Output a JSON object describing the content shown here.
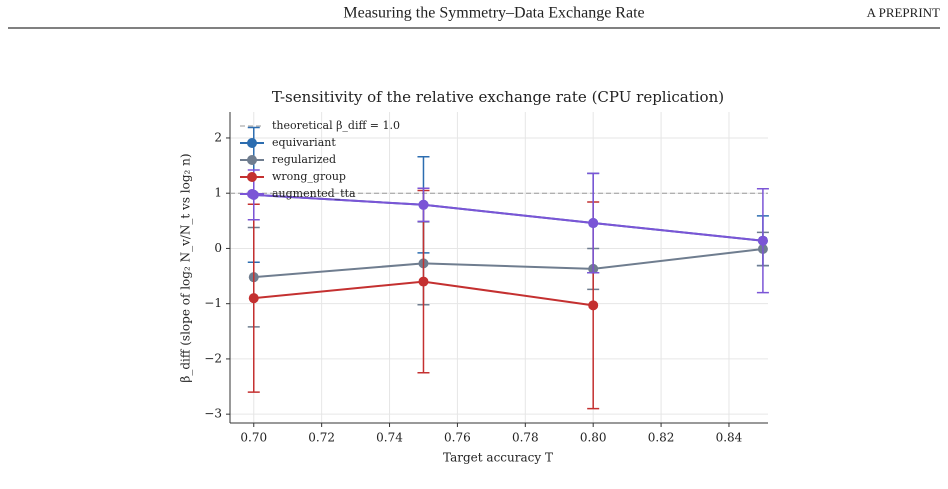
{
  "header": {
    "title": "Measuring the Symmetry–Data Exchange Rate",
    "tag": "A PREPRINT"
  },
  "chart_data": {
    "type": "line",
    "title": "T-sensitivity of the relative exchange rate (CPU replication)",
    "x_label": "Target accuracy T",
    "y_label": "β_diff (slope of log₂ N_v/N_t vs log₂ n)",
    "x": [
      0.7,
      0.75,
      0.8,
      0.85
    ],
    "series": [
      {
        "name": "equivariant",
        "color": "#2c6db0",
        "values": [
          0.97,
          0.79,
          0.46,
          0.14
        ],
        "errors": [
          1.22,
          0.87,
          0.9,
          0.45
        ]
      },
      {
        "name": "regularized",
        "color": "#6f7d8f",
        "values": [
          -0.52,
          -0.27,
          -0.37,
          -0.01
        ],
        "errors": [
          0.9,
          0.75,
          0.37,
          0.3
        ]
      },
      {
        "name": "wrong_group",
        "color": "#c43030",
        "values": [
          -0.9,
          -0.6,
          -1.03,
          null
        ],
        "errors": [
          1.7,
          1.65,
          1.87,
          null
        ]
      },
      {
        "name": "augmented_tta",
        "color": "#7b55d6",
        "values": [
          0.97,
          0.79,
          0.46,
          0.14
        ],
        "errors": [
          0.45,
          0.3,
          0.9,
          0.94
        ]
      }
    ],
    "reference_line": {
      "name": "theoretical β_diff = 1.0",
      "value": 1.0,
      "color": "#999999"
    },
    "xlim": [
      0.693,
      0.8515
    ],
    "ylim": [
      -3.16,
      2.47
    ],
    "xticks": [
      {
        "value": 0.7,
        "label": "0.70"
      },
      {
        "value": 0.72,
        "label": "0.72"
      },
      {
        "value": 0.74,
        "label": "0.74"
      },
      {
        "value": 0.76,
        "label": "0.76"
      },
      {
        "value": 0.78,
        "label": "0.78"
      },
      {
        "value": 0.8,
        "label": "0.80"
      },
      {
        "value": 0.82,
        "label": "0.82"
      },
      {
        "value": 0.84,
        "label": "0.84"
      }
    ],
    "yticks": [
      {
        "value": -3,
        "label": "−3"
      },
      {
        "value": -2,
        "label": "−2"
      },
      {
        "value": -1,
        "label": "−1"
      },
      0,
      1,
      2
    ],
    "grid": true,
    "legend": "upper left"
  }
}
